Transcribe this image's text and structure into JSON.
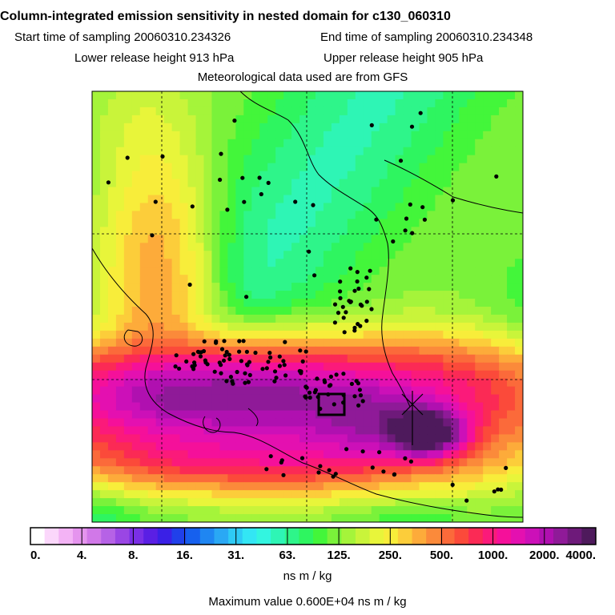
{
  "chart_data": {
    "type": "heatmap",
    "title": "Column-integrated emission sensitivity in nested domain for c130_060310",
    "subtitle_lines": [
      {
        "label_start": "Start time of sampling 20060310.234326",
        "label_end": "End time of sampling 20060310.234348"
      },
      {
        "label_start": "Lower release height  913 hPa",
        "label_end": "Upper release height  905 hPa"
      }
    ],
    "met_note": "Meteorological data used are from GFS",
    "colorbar": {
      "tick_labels": [
        "0.",
        "4.",
        "8.",
        "16.",
        "31.",
        "63.",
        "125.",
        "250.",
        "500.",
        "1000.",
        "2000.",
        "4000."
      ],
      "levels": [
        0,
        4,
        8,
        16,
        31,
        63,
        125,
        250,
        500,
        1000,
        2000,
        4000
      ],
      "colors": [
        "#ffffff",
        "#fbd7fb",
        "#f3b3f5",
        "#e594ee",
        "#d178e8",
        "#b662e6",
        "#9a46e4",
        "#7a2fe6",
        "#5a1fe4",
        "#3a20e6",
        "#2040ea",
        "#1660ee",
        "#1f86f2",
        "#2aa8f4",
        "#2ecaf5",
        "#33e6f4",
        "#33f5e0",
        "#2ef5b5",
        "#2ef58a",
        "#2ef560",
        "#43f63a",
        "#7af23a",
        "#a5f43a",
        "#c9f43a",
        "#e8f53a",
        "#f8ed3a",
        "#fccd3a",
        "#fdab3a",
        "#fb8a3a",
        "#fb6a3a",
        "#fb4a3a",
        "#fb2a55",
        "#fb1a7a",
        "#f5109a",
        "#e410b0",
        "#cc10b8",
        "#b010b0",
        "#8f1a98",
        "#6e1a7a",
        "#4e1a5c"
      ],
      "unit_label": "ns m / kg"
    },
    "max_value_label": "Maximum value  0.600E+04 ns m / kg",
    "peak_value": 6000,
    "sensitivity_field": {
      "background_level": 90,
      "plumes": [
        {
          "cx": 0.5,
          "cy": 0.75,
          "sx": 0.6,
          "sy": 0.1,
          "value": 260
        },
        {
          "cx": 0.42,
          "cy": 0.7,
          "sx": 0.4,
          "sy": 0.07,
          "value": 700
        },
        {
          "cx": 0.3,
          "cy": 0.71,
          "sx": 0.2,
          "sy": 0.05,
          "value": 1700
        },
        {
          "cx": 0.65,
          "cy": 0.76,
          "sx": 0.1,
          "sy": 0.05,
          "value": 1300
        },
        {
          "cx": 0.39,
          "cy": 0.84,
          "sx": 0.28,
          "sy": 0.05,
          "value": 800
        },
        {
          "cx": 0.77,
          "cy": 0.79,
          "sx": 0.05,
          "sy": 0.03,
          "value": 5000
        },
        {
          "cx": 0.15,
          "cy": 0.47,
          "sx": 0.08,
          "sy": 0.22,
          "value": 280
        },
        {
          "cx": 0.82,
          "cy": 0.7,
          "sx": 0.12,
          "sy": 0.08,
          "value": 230
        },
        {
          "cx": 0.05,
          "cy": 0.05,
          "sx": 0.1,
          "sy": 0.08,
          "value": 40
        },
        {
          "cx": 0.9,
          "cy": 0.92,
          "sx": 0.1,
          "sy": 0.08,
          "value": 60
        }
      ]
    },
    "grid": {
      "dashed_lines": true
    },
    "station_count_shown": "many"
  }
}
